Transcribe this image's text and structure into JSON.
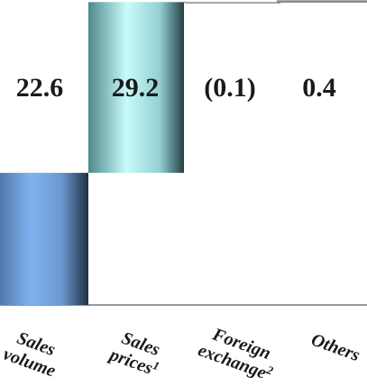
{
  "chart_data": {
    "type": "bar",
    "subtype": "waterfall",
    "categories": [
      {
        "line1": "Sales",
        "line2": "volume",
        "sup": ""
      },
      {
        "line1": "Sales",
        "line2": "prices",
        "sup": "1"
      },
      {
        "line1": "Foreign",
        "line2": "exchange",
        "sup": "2"
      },
      {
        "line1": "Others",
        "line2": "",
        "sup": ""
      }
    ],
    "values": [
      22.6,
      29.2,
      -0.1,
      0.4
    ],
    "labels": [
      "22.6",
      "29.2",
      "(0.1)",
      "0.4"
    ],
    "colors": {
      "volume_bar": "#7fb3f0",
      "prices_bar": "#b8f0f0",
      "connector": "#999999",
      "text": "#1a1a1a"
    },
    "grid": false,
    "legend": "none"
  }
}
